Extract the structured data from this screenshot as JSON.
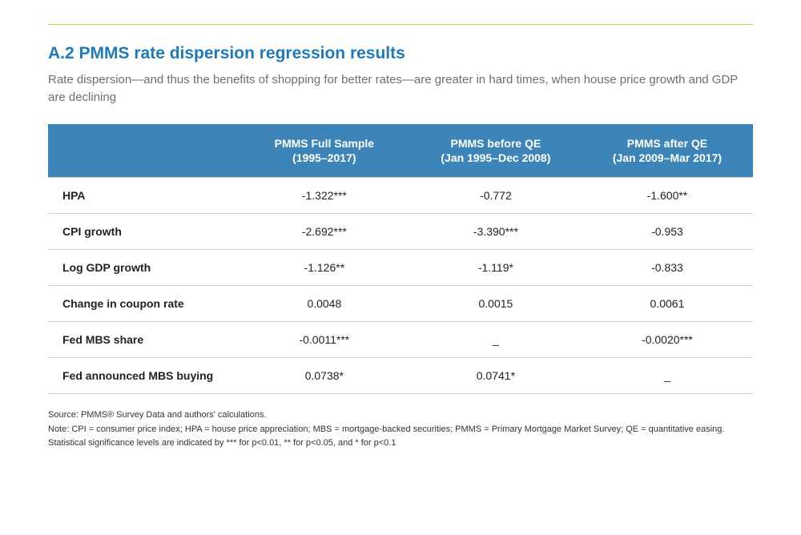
{
  "colors": {
    "title": "#1f7abc",
    "subtitle": "#6f6f6f",
    "header_bg": "#3d85b9",
    "header_text": "#ffffff",
    "row_border": "#d0d0d0",
    "top_rule": "#b8d943",
    "body_text": "#222222"
  },
  "title": "A.2 PMMS rate dispersion regression results",
  "subtitle": "Rate dispersion—and thus the benefits of shopping for better rates—are greater in hard times, when house price growth and GDP are declining",
  "columns": [
    {
      "line1": "",
      "line2": ""
    },
    {
      "line1": "PMMS Full Sample",
      "line2": "(1995–2017)"
    },
    {
      "line1": "PMMS before QE",
      "line2": "(Jan 1995–Dec 2008)"
    },
    {
      "line1": "PMMS after QE",
      "line2": "(Jan 2009–Mar 2017)"
    }
  ],
  "rows": [
    {
      "label": "HPA",
      "c1": "-1.322***",
      "c2": "-0.772",
      "c3": "-1.600**"
    },
    {
      "label": "CPI growth",
      "c1": "-2.692***",
      "c2": "-3.390***",
      "c3": "-0.953"
    },
    {
      "label": "Log GDP growth",
      "c1": "-1.126**",
      "c2": "-1.119*",
      "c3": "-0.833"
    },
    {
      "label": "Change in coupon rate",
      "c1": "0.0048",
      "c2": "0.0015",
      "c3": "0.0061"
    },
    {
      "label": "Fed MBS share",
      "c1": "-0.0011***",
      "c2": "_",
      "c3": "-0.0020***"
    },
    {
      "label": "Fed announced MBS buying",
      "c1": "0.0738*",
      "c2": "0.0741*",
      "c3": "_"
    }
  ],
  "footnotes": {
    "source": "Source: PMMS® Survey Data and authors' calculations.",
    "note": "Note: CPI = consumer price index; HPA = house price appreciation; MBS = mortgage-backed securities; PMMS = Primary Mortgage Market Survey; QE = quantitative easing.",
    "stats": "Statistical significance levels are indicated by *** for p<0.01, ** for p<0.05, and * for p<0.1"
  },
  "typography": {
    "title_fontsize": 21,
    "subtitle_fontsize": 15,
    "header_fontsize": 14,
    "cell_fontsize": 14,
    "footnote_fontsize": 11
  }
}
